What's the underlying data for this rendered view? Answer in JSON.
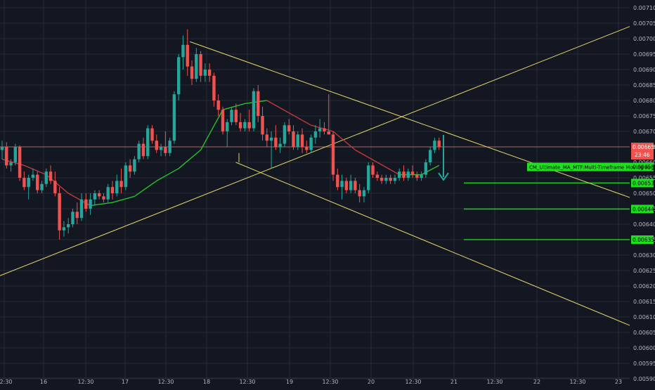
{
  "theme": {
    "background": "#131722",
    "grid": "#262b36",
    "axis_text": "#b2b5be",
    "bull": "#26a69a",
    "bear": "#ef5350",
    "trendline": "#e6d86a",
    "ma_green": "#26c22b",
    "ma_red": "#c23a3a",
    "level_green": "#22c322",
    "label_green_bg": "#1ee01e",
    "price_label_bg": "#ef5350"
  },
  "y_axis": {
    "min": 0.005875,
    "max": 0.007125,
    "ticks": [
      "0.007100",
      "0.007050",
      "0.007000",
      "0.006950",
      "0.006900",
      "0.006850",
      "0.006800",
      "0.006750",
      "0.006700",
      "0.006650",
      "0.006600",
      "0.006550",
      "0.006500",
      "0.006450",
      "0.006400",
      "0.006350",
      "0.006300",
      "0.006250",
      "0.006200",
      "0.006150",
      "0.006100",
      "0.006050",
      "0.006000",
      "0.005950",
      "0.005900"
    ]
  },
  "x_axis": {
    "labels": [
      "12:30",
      "16",
      "12:30",
      "17",
      "12:30",
      "18",
      "12:30",
      "19",
      "12:30",
      "20",
      "12:30",
      "21",
      "12:30",
      "22",
      "12:30",
      "23"
    ]
  },
  "price_label": {
    "price": "0.006650",
    "countdown": "23:46"
  },
  "indicator_label": {
    "text": "CM_Ultimate_MA_MTF:Multi-Timeframe Moving Avg",
    "price": "0.006585"
  },
  "levels": [
    {
      "price": 0.006533,
      "label": "0.006533"
    },
    {
      "price": 0.006449,
      "label": "0.006449"
    },
    {
      "price": 0.00635,
      "label": "0.006350"
    }
  ],
  "chart_data": {
    "type": "candlestick",
    "x_labels": [
      "12:30",
      "16",
      "12:30",
      "17",
      "12:30",
      "18",
      "12:30",
      "19",
      "12:30",
      "20",
      "12:30",
      "21",
      "12:30",
      "22",
      "12:30",
      "23"
    ],
    "ylim": [
      0.005875,
      0.007125
    ],
    "candles": [
      {
        "o": 0.00664,
        "h": 0.00667,
        "l": 0.00661,
        "c": 0.00665
      },
      {
        "o": 0.00665,
        "h": 0.006665,
        "l": 0.00658,
        "c": 0.00659
      },
      {
        "o": 0.00659,
        "h": 0.00661,
        "l": 0.00657,
        "c": 0.0066
      },
      {
        "o": 0.0066,
        "h": 0.00666,
        "l": 0.00659,
        "c": 0.00665
      },
      {
        "o": 0.00665,
        "h": 0.006655,
        "l": 0.00654,
        "c": 0.00655
      },
      {
        "o": 0.00655,
        "h": 0.00657,
        "l": 0.00651,
        "c": 0.00652
      },
      {
        "o": 0.00652,
        "h": 0.00656,
        "l": 0.00648,
        "c": 0.00655
      },
      {
        "o": 0.00655,
        "h": 0.00658,
        "l": 0.00654,
        "c": 0.00656
      },
      {
        "o": 0.00656,
        "h": 0.00657,
        "l": 0.0065,
        "c": 0.00651
      },
      {
        "o": 0.00651,
        "h": 0.00654,
        "l": 0.0065,
        "c": 0.00653
      },
      {
        "o": 0.00653,
        "h": 0.00658,
        "l": 0.00652,
        "c": 0.00657
      },
      {
        "o": 0.00657,
        "h": 0.00659,
        "l": 0.00653,
        "c": 0.00654
      },
      {
        "o": 0.00654,
        "h": 0.00657,
        "l": 0.00649,
        "c": 0.0065
      },
      {
        "o": 0.0065,
        "h": 0.00652,
        "l": 0.00635,
        "c": 0.00638
      },
      {
        "o": 0.00638,
        "h": 0.00641,
        "l": 0.00636,
        "c": 0.00639
      },
      {
        "o": 0.00639,
        "h": 0.00642,
        "l": 0.00637,
        "c": 0.0064
      },
      {
        "o": 0.0064,
        "h": 0.00645,
        "l": 0.00639,
        "c": 0.00644
      },
      {
        "o": 0.00644,
        "h": 0.00647,
        "l": 0.0064,
        "c": 0.00642
      },
      {
        "o": 0.00642,
        "h": 0.0065,
        "l": 0.00641,
        "c": 0.00648
      },
      {
        "o": 0.00648,
        "h": 0.0065,
        "l": 0.00644,
        "c": 0.00645
      },
      {
        "o": 0.00645,
        "h": 0.0065,
        "l": 0.00643,
        "c": 0.00648
      },
      {
        "o": 0.00648,
        "h": 0.00651,
        "l": 0.00646,
        "c": 0.0065
      },
      {
        "o": 0.0065,
        "h": 0.00651,
        "l": 0.00648,
        "c": 0.00649
      },
      {
        "o": 0.00649,
        "h": 0.0065,
        "l": 0.00647,
        "c": 0.00648
      },
      {
        "o": 0.00648,
        "h": 0.00653,
        "l": 0.00647,
        "c": 0.00652
      },
      {
        "o": 0.00652,
        "h": 0.00654,
        "l": 0.00648,
        "c": 0.0065
      },
      {
        "o": 0.0065,
        "h": 0.00656,
        "l": 0.00649,
        "c": 0.00654
      },
      {
        "o": 0.00654,
        "h": 0.00658,
        "l": 0.0065,
        "c": 0.00652
      },
      {
        "o": 0.00652,
        "h": 0.0066,
        "l": 0.00651,
        "c": 0.00659
      },
      {
        "o": 0.00659,
        "h": 0.00661,
        "l": 0.00655,
        "c": 0.00657
      },
      {
        "o": 0.00657,
        "h": 0.00662,
        "l": 0.00656,
        "c": 0.00661
      },
      {
        "o": 0.00661,
        "h": 0.00667,
        "l": 0.0066,
        "c": 0.00666
      },
      {
        "o": 0.00666,
        "h": 0.00668,
        "l": 0.00661,
        "c": 0.00662
      },
      {
        "o": 0.00662,
        "h": 0.00672,
        "l": 0.00661,
        "c": 0.00671
      },
      {
        "o": 0.00671,
        "h": 0.00672,
        "l": 0.00666,
        "c": 0.00667
      },
      {
        "o": 0.00667,
        "h": 0.00669,
        "l": 0.00663,
        "c": 0.00664
      },
      {
        "o": 0.00664,
        "h": 0.00666,
        "l": 0.00662,
        "c": 0.00665
      },
      {
        "o": 0.00665,
        "h": 0.0067,
        "l": 0.00662,
        "c": 0.00663
      },
      {
        "o": 0.00663,
        "h": 0.00668,
        "l": 0.00662,
        "c": 0.00667
      },
      {
        "o": 0.00667,
        "h": 0.00683,
        "l": 0.00666,
        "c": 0.00682
      },
      {
        "o": 0.00682,
        "h": 0.00695,
        "l": 0.0068,
        "c": 0.00694
      },
      {
        "o": 0.00694,
        "h": 0.00701,
        "l": 0.0069,
        "c": 0.00698
      },
      {
        "o": 0.00698,
        "h": 0.00703,
        "l": 0.00688,
        "c": 0.00691
      },
      {
        "o": 0.00691,
        "h": 0.00693,
        "l": 0.00685,
        "c": 0.00687
      },
      {
        "o": 0.00687,
        "h": 0.00697,
        "l": 0.00686,
        "c": 0.00695
      },
      {
        "o": 0.00695,
        "h": 0.00696,
        "l": 0.00686,
        "c": 0.00688
      },
      {
        "o": 0.00688,
        "h": 0.00692,
        "l": 0.00686,
        "c": 0.0069
      },
      {
        "o": 0.0069,
        "h": 0.00692,
        "l": 0.00686,
        "c": 0.00688
      },
      {
        "o": 0.00688,
        "h": 0.00689,
        "l": 0.00678,
        "c": 0.0068
      },
      {
        "o": 0.0068,
        "h": 0.00682,
        "l": 0.00675,
        "c": 0.00677
      },
      {
        "o": 0.00677,
        "h": 0.00678,
        "l": 0.00669,
        "c": 0.0067
      },
      {
        "o": 0.0067,
        "h": 0.00674,
        "l": 0.00665,
        "c": 0.00673
      },
      {
        "o": 0.00673,
        "h": 0.00678,
        "l": 0.00672,
        "c": 0.00677
      },
      {
        "o": 0.00677,
        "h": 0.00679,
        "l": 0.00672,
        "c": 0.00673
      },
      {
        "o": 0.00673,
        "h": 0.00676,
        "l": 0.0067,
        "c": 0.00671
      },
      {
        "o": 0.00671,
        "h": 0.00674,
        "l": 0.0067,
        "c": 0.00673
      },
      {
        "o": 0.00673,
        "h": 0.00677,
        "l": 0.0067,
        "c": 0.00671
      },
      {
        "o": 0.00671,
        "h": 0.00684,
        "l": 0.0067,
        "c": 0.00683
      },
      {
        "o": 0.00683,
        "h": 0.00685,
        "l": 0.00673,
        "c": 0.00675
      },
      {
        "o": 0.00675,
        "h": 0.00678,
        "l": 0.00667,
        "c": 0.00669
      },
      {
        "o": 0.00669,
        "h": 0.00671,
        "l": 0.00665,
        "c": 0.00667
      },
      {
        "o": 0.00667,
        "h": 0.0067,
        "l": 0.00658,
        "c": 0.00668
      },
      {
        "o": 0.00668,
        "h": 0.00672,
        "l": 0.00664,
        "c": 0.00665
      },
      {
        "o": 0.00665,
        "h": 0.00668,
        "l": 0.00663,
        "c": 0.00666
      },
      {
        "o": 0.00666,
        "h": 0.00673,
        "l": 0.00665,
        "c": 0.00672
      },
      {
        "o": 0.00672,
        "h": 0.00674,
        "l": 0.00669,
        "c": 0.0067
      },
      {
        "o": 0.0067,
        "h": 0.00672,
        "l": 0.00664,
        "c": 0.00665
      },
      {
        "o": 0.00665,
        "h": 0.0067,
        "l": 0.00664,
        "c": 0.00669
      },
      {
        "o": 0.00669,
        "h": 0.00671,
        "l": 0.00663,
        "c": 0.00665
      },
      {
        "o": 0.00665,
        "h": 0.00667,
        "l": 0.00663,
        "c": 0.00664
      },
      {
        "o": 0.00664,
        "h": 0.00669,
        "l": 0.00663,
        "c": 0.00668
      },
      {
        "o": 0.00668,
        "h": 0.00672,
        "l": 0.00666,
        "c": 0.0067
      },
      {
        "o": 0.0067,
        "h": 0.00674,
        "l": 0.00668,
        "c": 0.00671
      },
      {
        "o": 0.00671,
        "h": 0.00673,
        "l": 0.00669,
        "c": 0.0067
      },
      {
        "o": 0.0067,
        "h": 0.00682,
        "l": 0.00669,
        "c": 0.00669
      },
      {
        "o": 0.00669,
        "h": 0.0067,
        "l": 0.00654,
        "c": 0.00656
      },
      {
        "o": 0.00656,
        "h": 0.00658,
        "l": 0.00651,
        "c": 0.00652
      },
      {
        "o": 0.00652,
        "h": 0.00656,
        "l": 0.00648,
        "c": 0.00654
      },
      {
        "o": 0.00654,
        "h": 0.00655,
        "l": 0.0065,
        "c": 0.00651
      },
      {
        "o": 0.00651,
        "h": 0.00656,
        "l": 0.0065,
        "c": 0.00654
      },
      {
        "o": 0.00654,
        "h": 0.00655,
        "l": 0.0065,
        "c": 0.00651
      },
      {
        "o": 0.00651,
        "h": 0.00653,
        "l": 0.00647,
        "c": 0.00649
      },
      {
        "o": 0.00649,
        "h": 0.00652,
        "l": 0.00647,
        "c": 0.00651
      },
      {
        "o": 0.00651,
        "h": 0.0066,
        "l": 0.0065,
        "c": 0.00659
      },
      {
        "o": 0.00659,
        "h": 0.0066,
        "l": 0.00655,
        "c": 0.00656
      },
      {
        "o": 0.00656,
        "h": 0.00657,
        "l": 0.00654,
        "c": 0.00655
      },
      {
        "o": 0.00655,
        "h": 0.00656,
        "l": 0.00653,
        "c": 0.00654
      },
      {
        "o": 0.00654,
        "h": 0.00656,
        "l": 0.00653,
        "c": 0.00655
      },
      {
        "o": 0.00655,
        "h": 0.00656,
        "l": 0.00653,
        "c": 0.00654
      },
      {
        "o": 0.00654,
        "h": 0.00656,
        "l": 0.00653,
        "c": 0.00655
      },
      {
        "o": 0.00655,
        "h": 0.00658,
        "l": 0.00654,
        "c": 0.00657
      },
      {
        "o": 0.00657,
        "h": 0.00659,
        "l": 0.00654,
        "c": 0.00655
      },
      {
        "o": 0.00655,
        "h": 0.00658,
        "l": 0.00654,
        "c": 0.00657
      },
      {
        "o": 0.00657,
        "h": 0.00659,
        "l": 0.00655,
        "c": 0.00656
      },
      {
        "o": 0.00656,
        "h": 0.00657,
        "l": 0.00654,
        "c": 0.00655
      },
      {
        "o": 0.00655,
        "h": 0.00657,
        "l": 0.00654,
        "c": 0.00656
      },
      {
        "o": 0.00656,
        "h": 0.00661,
        "l": 0.00655,
        "c": 0.0066
      },
      {
        "o": 0.0066,
        "h": 0.00665,
        "l": 0.00659,
        "c": 0.00664
      },
      {
        "o": 0.00664,
        "h": 0.00668,
        "l": 0.00663,
        "c": 0.00667
      },
      {
        "o": 0.00667,
        "h": 0.00668,
        "l": 0.00664,
        "c": 0.00665
      }
    ],
    "moving_averages": [
      {
        "name": "ma",
        "values": [
          [
            0,
            0.00661
          ],
          [
            5,
            0.00659
          ],
          [
            10,
            0.00656
          ],
          [
            15,
            0.0065
          ],
          [
            20,
            0.00646
          ],
          [
            25,
            0.00647
          ],
          [
            30,
            0.00649
          ],
          [
            35,
            0.00654
          ],
          [
            40,
            0.00658
          ],
          [
            45,
            0.00664
          ],
          [
            50,
            0.00677
          ],
          [
            55,
            0.00679
          ],
          [
            60,
            0.0068
          ],
          [
            65,
            0.00676
          ],
          [
            70,
            0.00672
          ],
          [
            75,
            0.0067
          ],
          [
            80,
            0.00664
          ],
          [
            85,
            0.0066
          ],
          [
            90,
            0.00656
          ],
          [
            95,
            0.00656
          ],
          [
            99,
            0.00659
          ]
        ]
      }
    ],
    "trendlines": [
      {
        "from": [
          -0.004,
          0.00623
        ],
        "to": [
          1.01,
          0.00708
        ]
      },
      {
        "from": [
          0.29,
          0.00699
        ],
        "to": [
          1.01,
          0.00645
        ]
      },
      {
        "from": [
          0.36,
          0.0066
        ],
        "to": [
          1.01,
          0.00603
        ]
      }
    ]
  }
}
